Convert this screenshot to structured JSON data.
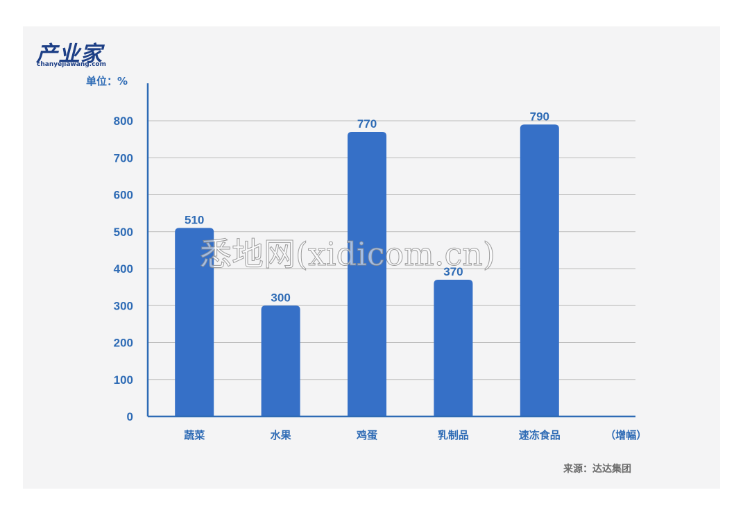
{
  "logo": {
    "main": "产业家",
    "sub": "chanyejiawang.com"
  },
  "unit_label": "单位：%",
  "source": "来源：达达集团",
  "watermark": "悉地网(xidicom.cn)",
  "colors": {
    "bar": "#3670c7",
    "axis": "#2e6bb5",
    "grid": "#bcbcbc",
    "panel": "#f4f4f5"
  },
  "chart_data": {
    "type": "bar",
    "categories": [
      "蔬菜",
      "水果",
      "鸡蛋",
      "乳制品",
      "速冻食品",
      "（增幅）"
    ],
    "values": [
      510,
      300,
      770,
      370,
      790,
      null
    ],
    "data_labels": [
      "510",
      "300",
      "770",
      "370",
      "790",
      ""
    ],
    "yticks": [
      0,
      100,
      200,
      300,
      400,
      500,
      600,
      700,
      800
    ],
    "ylim": [
      0,
      800
    ],
    "ylabel": "单位：%",
    "grid": true
  }
}
